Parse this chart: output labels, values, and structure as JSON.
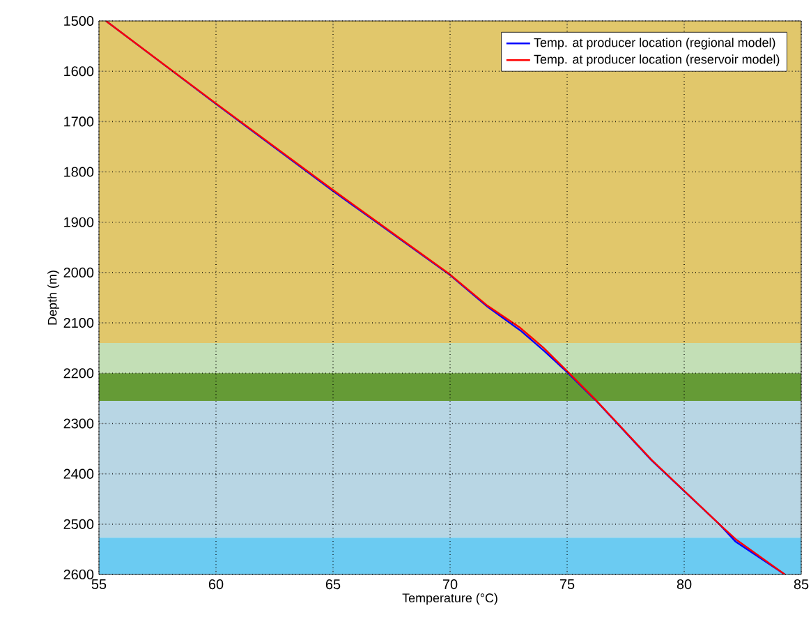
{
  "chart_data": {
    "type": "line",
    "xlabel": "Temperature (°C)",
    "ylabel": "Depth (m)",
    "xlim": [
      55,
      85
    ],
    "xticks": [
      55,
      60,
      65,
      70,
      75,
      80,
      85
    ],
    "ylim": [
      2600,
      1500
    ],
    "yticks": [
      1500,
      1600,
      1700,
      1800,
      1900,
      2000,
      2100,
      2200,
      2300,
      2400,
      2500,
      2600
    ],
    "grid": true,
    "legend": "top right",
    "bands": [
      {
        "axis": "y",
        "from": 1500,
        "to": 2140,
        "color": "#e1c76b"
      },
      {
        "axis": "y",
        "from": 2140,
        "to": 2200,
        "color": "#c3dfb6"
      },
      {
        "axis": "y",
        "from": 2200,
        "to": 2255,
        "color": "#659b36"
      },
      {
        "axis": "y",
        "from": 2255,
        "to": 2527,
        "color": "#b8d6e4"
      },
      {
        "axis": "y",
        "from": 2527,
        "to": 2600,
        "color": "#6bcbf2"
      }
    ],
    "series": [
      {
        "name": "Temp. at producer location (regional model)",
        "color": "#0000ff",
        "x": [
          55.3,
          60,
          65,
          70,
          71.6,
          73,
          74,
          75,
          76.2,
          78.6,
          81.5,
          82.2,
          84.3
        ],
        "values": [
          1500,
          1665,
          1838,
          2005,
          2068,
          2115,
          2155,
          2198,
          2253,
          2373,
          2500,
          2535,
          2600
        ]
      },
      {
        "name": "Temp. at producer location (reservoir model)",
        "color": "#ff0000",
        "x": [
          55.3,
          60,
          65,
          70,
          71.6,
          73,
          74,
          75,
          76.2,
          78.6,
          81.5,
          82.2,
          84.3
        ],
        "values": [
          1500,
          1664,
          1836,
          2004,
          2066,
          2110,
          2150,
          2196,
          2252,
          2372,
          2500,
          2530,
          2600
        ]
      }
    ]
  }
}
